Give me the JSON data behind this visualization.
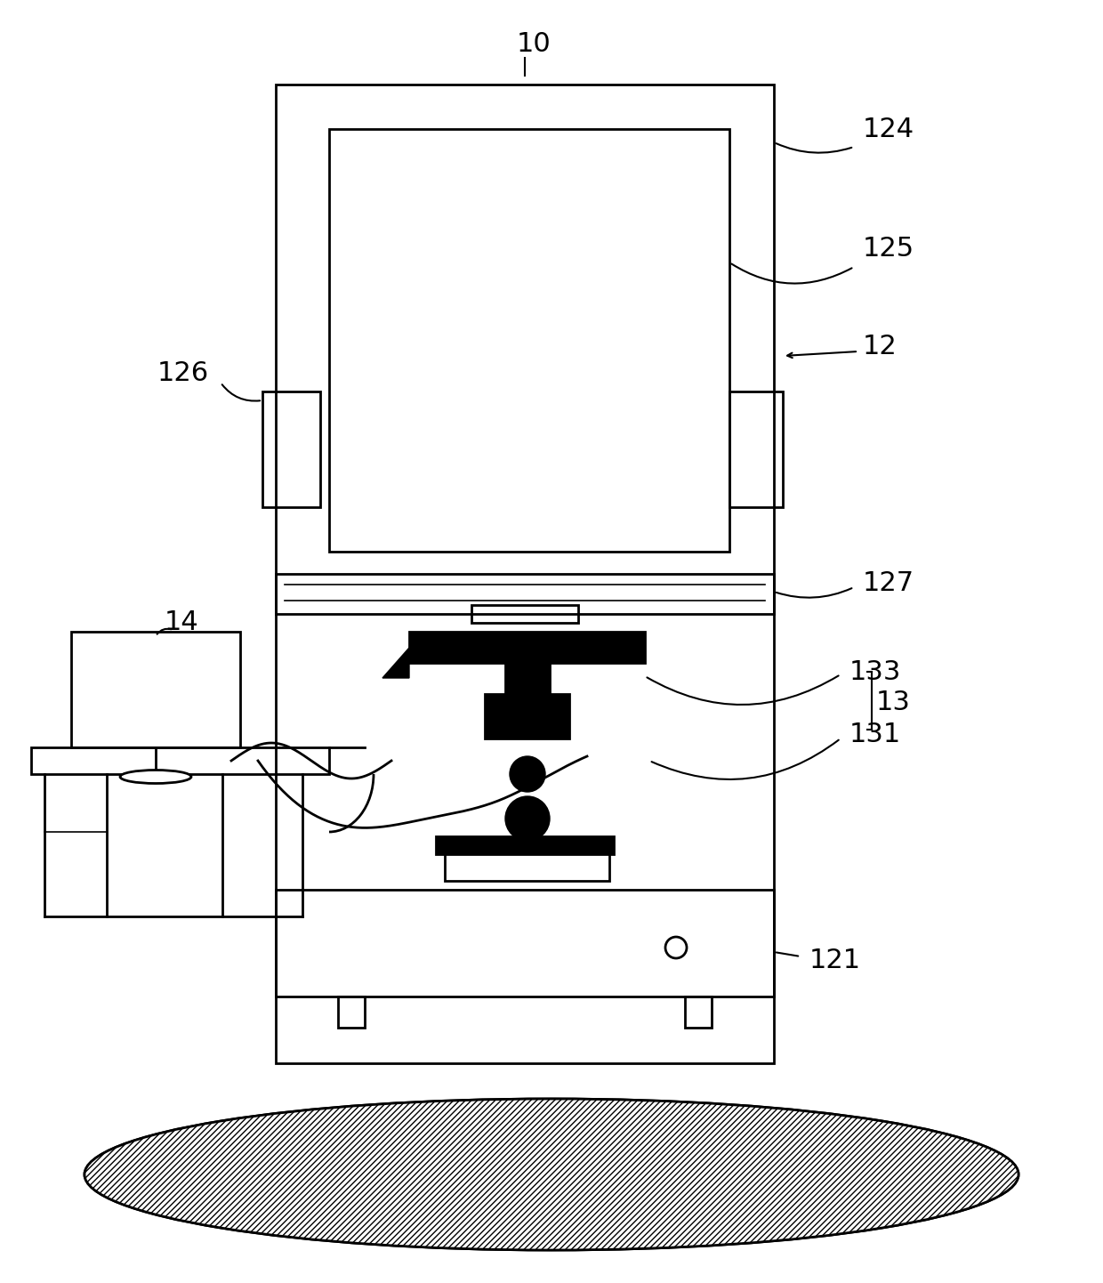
{
  "bg_color": "#ffffff",
  "line_color": "#000000",
  "lw": 2.0,
  "lw_thin": 1.2,
  "lw_thick": 3.0,
  "label_10": "10",
  "label_12": "12",
  "label_121": "121",
  "label_124": "124",
  "label_125": "125",
  "label_126": "126",
  "label_127": "127",
  "label_13": "13",
  "label_131": "131",
  "label_133": "133",
  "label_14": "14",
  "font_size": 22
}
